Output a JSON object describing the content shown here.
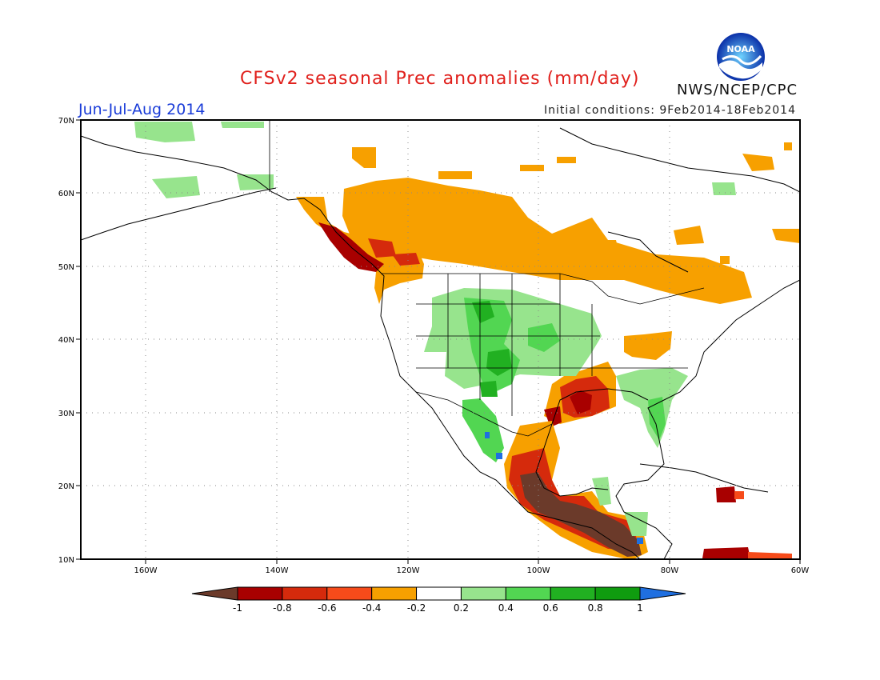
{
  "header": {
    "title": "CFSv2 seasonal Prec anomalies (mm/day)",
    "period": "Jun-Jul-Aug 2014",
    "initial_conditions": "Initial conditions: 9Feb2014-18Feb2014",
    "agency": "NWS/NCEP/CPC",
    "logo_text": "NOAA"
  },
  "map": {
    "lon_range": [
      -172,
      -60
    ],
    "lat_range": [
      10,
      70
    ],
    "lat_labels": [
      "10N",
      "20N",
      "30N",
      "40N",
      "50N",
      "60N",
      "70N"
    ],
    "lon_labels": [
      "160W",
      "140W",
      "120W",
      "100W",
      "80W",
      "60W"
    ],
    "grid": true,
    "anomaly_regions": [
      {
        "name": "Canadian Prairies / Northwest dry",
        "category": "-0.4 to -0.2",
        "color": "#f7a000"
      },
      {
        "name": "Pacific Northwest coast dry",
        "category": "-1 to -0.6",
        "color": "#a80000"
      },
      {
        "name": "Gulf Coast dry",
        "category": "-0.8 to -0.6",
        "color": "#d52a0c"
      },
      {
        "name": "Southern Mexico / Central America dry",
        "category": "< -1",
        "color": "#6b3a2a"
      },
      {
        "name": "Central Plains / Rockies wet",
        "category": "0.2 to 0.6",
        "color": "#3fcf3f"
      },
      {
        "name": "Southeast US wet",
        "category": "0.2 to 0.4",
        "color": "#97e48d"
      },
      {
        "name": "Alaska wet",
        "category": "0.2 to 0.4",
        "color": "#97e48d"
      }
    ]
  },
  "colorbar": {
    "labels": [
      "-1",
      "-0.8",
      "-0.6",
      "-0.4",
      "-0.2",
      "0.2",
      "0.4",
      "0.6",
      "0.8",
      "1"
    ],
    "colors": [
      "#6b3a2a",
      "#a80000",
      "#d52a0c",
      "#f64b1a",
      "#f7a000",
      "#ffffff",
      "#97e48d",
      "#52d652",
      "#21b021",
      "#0f9c0f",
      "#1f6fe0"
    ]
  }
}
